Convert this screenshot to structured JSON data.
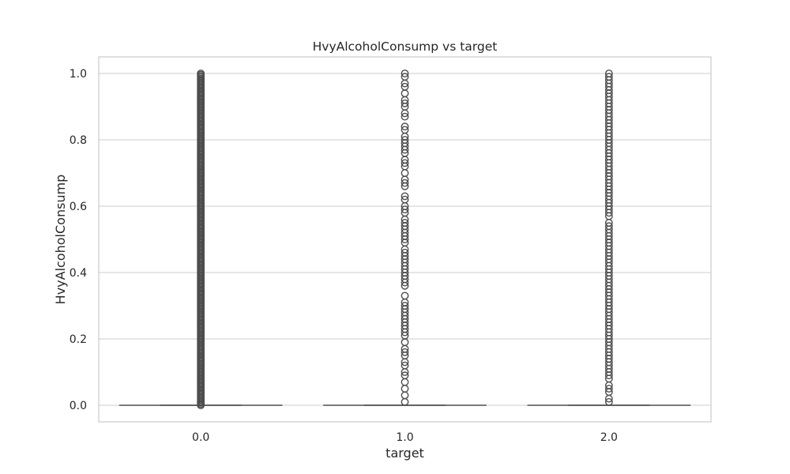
{
  "chart_data": {
    "type": "box",
    "title": "HvyAlcoholConsump vs target",
    "xlabel": "target",
    "ylabel": "HvyAlcoholConsump",
    "categories": [
      "0.0",
      "1.0",
      "2.0"
    ],
    "ylim": [
      -0.05,
      1.05
    ],
    "yticks": [
      "0.0",
      "0.2",
      "0.4",
      "0.6",
      "0.8",
      "1.0"
    ],
    "grid": true,
    "boxes": [
      {
        "category": "0.0",
        "whisker_low": 0.0,
        "q1": 0.0,
        "median": 0.0,
        "q3": 0.0,
        "whisker_high": 0.0,
        "outliers_dense": true,
        "outlier_range": [
          0.0,
          1.0
        ]
      },
      {
        "category": "1.0",
        "whisker_low": 0.0,
        "q1": 0.0,
        "median": 0.0,
        "q3": 0.0,
        "whisker_high": 0.0,
        "outliers": [
          0.01,
          0.03,
          0.05,
          0.07,
          0.09,
          0.1,
          0.12,
          0.13,
          0.15,
          0.16,
          0.17,
          0.19,
          0.21,
          0.22,
          0.23,
          0.24,
          0.25,
          0.26,
          0.27,
          0.28,
          0.29,
          0.3,
          0.31,
          0.33,
          0.36,
          0.37,
          0.38,
          0.39,
          0.4,
          0.41,
          0.42,
          0.43,
          0.44,
          0.45,
          0.46,
          0.47,
          0.49,
          0.5,
          0.51,
          0.52,
          0.53,
          0.54,
          0.55,
          0.56,
          0.58,
          0.59,
          0.6,
          0.62,
          0.63,
          0.66,
          0.67,
          0.68,
          0.7,
          0.72,
          0.73,
          0.74,
          0.76,
          0.77,
          0.78,
          0.79,
          0.8,
          0.81,
          0.83,
          0.84,
          0.87,
          0.88,
          0.9,
          0.91,
          0.92,
          0.94,
          0.96,
          0.97,
          0.99,
          1.0
        ]
      },
      {
        "category": "2.0",
        "whisker_low": 0.0,
        "q1": 0.0,
        "median": 0.0,
        "q3": 0.0,
        "whisker_high": 0.0,
        "outliers": [
          0.01,
          0.02,
          0.04,
          0.05,
          0.06,
          0.08,
          0.09,
          0.1,
          0.11,
          0.12,
          0.13,
          0.14,
          0.15,
          0.16,
          0.17,
          0.18,
          0.19,
          0.2,
          0.21,
          0.22,
          0.23,
          0.24,
          0.25,
          0.26,
          0.27,
          0.28,
          0.29,
          0.3,
          0.31,
          0.32,
          0.33,
          0.34,
          0.35,
          0.36,
          0.37,
          0.38,
          0.39,
          0.4,
          0.41,
          0.42,
          0.43,
          0.44,
          0.45,
          0.46,
          0.47,
          0.48,
          0.49,
          0.5,
          0.51,
          0.52,
          0.53,
          0.54,
          0.55,
          0.57,
          0.58,
          0.59,
          0.6,
          0.61,
          0.62,
          0.63,
          0.64,
          0.65,
          0.66,
          0.67,
          0.68,
          0.69,
          0.7,
          0.71,
          0.72,
          0.73,
          0.74,
          0.75,
          0.76,
          0.77,
          0.78,
          0.79,
          0.8,
          0.81,
          0.82,
          0.83,
          0.84,
          0.85,
          0.86,
          0.87,
          0.88,
          0.89,
          0.9,
          0.91,
          0.92,
          0.93,
          0.94,
          0.95,
          0.96,
          0.97,
          0.98,
          0.99,
          1.0
        ]
      }
    ]
  },
  "colors": {
    "background": "#ffffff",
    "grid": "#cccccc",
    "frame": "#cccccc",
    "mark": "#4d4d4d",
    "text": "#262626"
  }
}
